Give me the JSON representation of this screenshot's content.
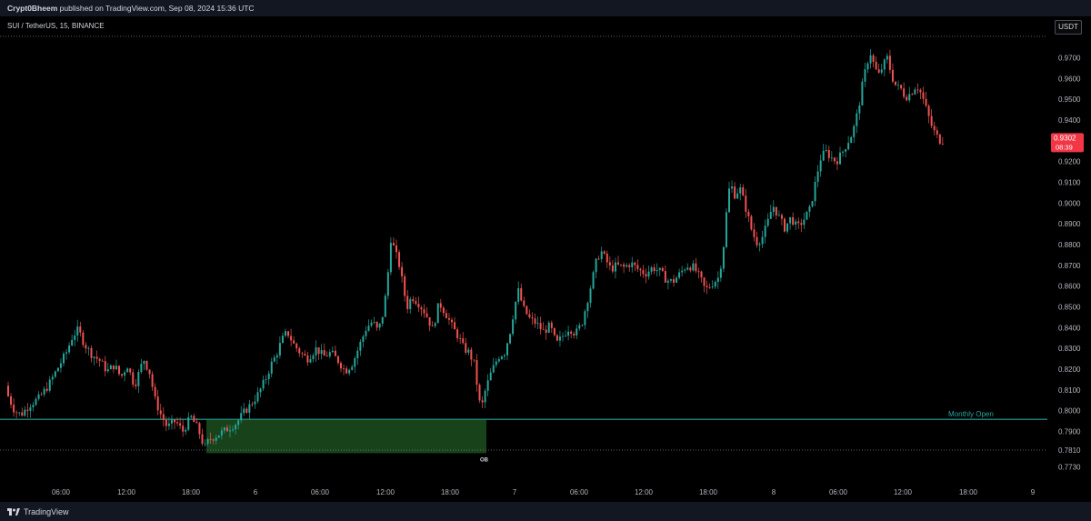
{
  "header": {
    "author": "Crypt0Bheem",
    "text": " published on TradingView.com, Sep 08, 2024 15:36 UTC"
  },
  "symbol": "SUI / TetherUS, 15, BINANCE",
  "currency_button": "USDT",
  "price_tag": {
    "price": "0.9302",
    "countdown": "08:39",
    "color": "#f23645"
  },
  "annotations": {
    "monthly_open_label": "Monthly Open",
    "ob_label": "OB"
  },
  "footer": {
    "brand": "TradingView"
  },
  "colors": {
    "up": "#26a69a",
    "down": "#ef5350",
    "monthly_open": "#26a69a",
    "ob_zone": "#1b4d1f",
    "background": "#000000"
  },
  "chart_data": {
    "type": "candlestick",
    "title": "SUI / TetherUS, 15, BINANCE",
    "xlabel": "",
    "ylabel": "",
    "ylim": [
      0.769,
      0.9803
    ],
    "y_tick_labels": [
      "0.9700",
      "0.9600",
      "0.9500",
      "0.9400",
      "0.9300",
      "0.9200",
      "0.9100",
      "0.9000",
      "0.8900",
      "0.8800",
      "0.8700",
      "0.8600",
      "0.8500",
      "0.8400",
      "0.8300",
      "0.8200",
      "0.8100",
      "0.8000",
      "0.7900",
      "0.7810",
      "0.7730"
    ],
    "x_tick_labels": [
      "06:00",
      "12:00",
      "18:00",
      "6",
      "06:00",
      "12:00",
      "18:00",
      "7",
      "06:00",
      "12:00",
      "18:00",
      "8",
      "06:00",
      "12:00",
      "18:00",
      "9"
    ],
    "reference_lines": [
      {
        "name": "Monthly Open",
        "value": 0.7958
      },
      {
        "value": 0.9803,
        "style": "dotted"
      },
      {
        "value": 0.781,
        "style": "dotted"
      }
    ],
    "zones": [
      {
        "name": "OB",
        "y_top": 0.7955,
        "y_bottom": 0.7795
      }
    ],
    "last_price": 0.9302,
    "path": [
      [
        0,
        0.812
      ],
      [
        5,
        0.818
      ],
      [
        10,
        0.808
      ],
      [
        18,
        0.8
      ],
      [
        25,
        0.798
      ],
      [
        35,
        0.803
      ],
      [
        45,
        0.806
      ],
      [
        55,
        0.812
      ],
      [
        65,
        0.82
      ],
      [
        75,
        0.828
      ],
      [
        82,
        0.836
      ],
      [
        88,
        0.839
      ],
      [
        95,
        0.832
      ],
      [
        103,
        0.827
      ],
      [
        112,
        0.824
      ],
      [
        120,
        0.819
      ],
      [
        128,
        0.822
      ],
      [
        135,
        0.816
      ],
      [
        142,
        0.822
      ],
      [
        150,
        0.812
      ],
      [
        160,
        0.825
      ],
      [
        167,
        0.818
      ],
      [
        172,
        0.806
      ],
      [
        178,
        0.799
      ],
      [
        186,
        0.792
      ],
      [
        195,
        0.795
      ],
      [
        203,
        0.79
      ],
      [
        212,
        0.797
      ],
      [
        220,
        0.791
      ],
      [
        227,
        0.782
      ],
      [
        232,
        0.786
      ],
      [
        240,
        0.788
      ],
      [
        248,
        0.79
      ],
      [
        255,
        0.792
      ],
      [
        262,
        0.794
      ],
      [
        270,
        0.799
      ],
      [
        278,
        0.803
      ],
      [
        286,
        0.808
      ],
      [
        294,
        0.815
      ],
      [
        300,
        0.822
      ],
      [
        306,
        0.827
      ],
      [
        312,
        0.834
      ],
      [
        318,
        0.838
      ],
      [
        325,
        0.832
      ],
      [
        332,
        0.828
      ],
      [
        340,
        0.825
      ],
      [
        350,
        0.83
      ],
      [
        358,
        0.826
      ],
      [
        366,
        0.828
      ],
      [
        374,
        0.824
      ],
      [
        382,
        0.819
      ],
      [
        390,
        0.823
      ],
      [
        398,
        0.832
      ],
      [
        405,
        0.84
      ],
      [
        412,
        0.843
      ],
      [
        418,
        0.838
      ],
      [
        424,
        0.848
      ],
      [
        428,
        0.862
      ],
      [
        432,
        0.883
      ],
      [
        437,
        0.876
      ],
      [
        442,
        0.869
      ],
      [
        446,
        0.858
      ],
      [
        450,
        0.85
      ],
      [
        455,
        0.855
      ],
      [
        462,
        0.852
      ],
      [
        470,
        0.847
      ],
      [
        478,
        0.839
      ],
      [
        485,
        0.852
      ],
      [
        492,
        0.847
      ],
      [
        500,
        0.84
      ],
      [
        507,
        0.835
      ],
      [
        512,
        0.83
      ],
      [
        518,
        0.828
      ],
      [
        524,
        0.822
      ],
      [
        528,
        0.808
      ],
      [
        531,
        0.8
      ],
      [
        536,
        0.81
      ],
      [
        542,
        0.818
      ],
      [
        550,
        0.826
      ],
      [
        557,
        0.828
      ],
      [
        563,
        0.838
      ],
      [
        568,
        0.85
      ],
      [
        572,
        0.858
      ],
      [
        578,
        0.849
      ],
      [
        585,
        0.844
      ],
      [
        592,
        0.842
      ],
      [
        600,
        0.838
      ],
      [
        607,
        0.841
      ],
      [
        614,
        0.832
      ],
      [
        621,
        0.836
      ],
      [
        628,
        0.84
      ],
      [
        635,
        0.837
      ],
      [
        642,
        0.842
      ],
      [
        648,
        0.853
      ],
      [
        653,
        0.862
      ],
      [
        658,
        0.872
      ],
      [
        663,
        0.877
      ],
      [
        668,
        0.873
      ],
      [
        674,
        0.868
      ],
      [
        680,
        0.87
      ],
      [
        688,
        0.869
      ],
      [
        696,
        0.871
      ],
      [
        704,
        0.868
      ],
      [
        712,
        0.866
      ],
      [
        720,
        0.869
      ],
      [
        728,
        0.867
      ],
      [
        735,
        0.863
      ],
      [
        742,
        0.862
      ],
      [
        750,
        0.866
      ],
      [
        757,
        0.87
      ],
      [
        765,
        0.869
      ],
      [
        772,
        0.864
      ],
      [
        778,
        0.858
      ],
      [
        785,
        0.861
      ],
      [
        792,
        0.864
      ],
      [
        797,
        0.875
      ],
      [
        801,
        0.895
      ],
      [
        805,
        0.91
      ],
      [
        810,
        0.904
      ],
      [
        816,
        0.907
      ],
      [
        822,
        0.898
      ],
      [
        828,
        0.888
      ],
      [
        834,
        0.881
      ],
      [
        840,
        0.883
      ],
      [
        846,
        0.89
      ],
      [
        852,
        0.899
      ],
      [
        858,
        0.894
      ],
      [
        865,
        0.888
      ],
      [
        872,
        0.893
      ],
      [
        879,
        0.888
      ],
      [
        886,
        0.892
      ],
      [
        893,
        0.897
      ],
      [
        899,
        0.91
      ],
      [
        904,
        0.921
      ],
      [
        910,
        0.925
      ],
      [
        916,
        0.922
      ],
      [
        922,
        0.92
      ],
      [
        928,
        0.924
      ],
      [
        934,
        0.929
      ],
      [
        940,
        0.934
      ],
      [
        946,
        0.945
      ],
      [
        951,
        0.958
      ],
      [
        955,
        0.966
      ],
      [
        959,
        0.973
      ],
      [
        963,
        0.967
      ],
      [
        968,
        0.961
      ],
      [
        973,
        0.966
      ],
      [
        978,
        0.97
      ],
      [
        983,
        0.961
      ],
      [
        988,
        0.956
      ],
      [
        993,
        0.955
      ],
      [
        998,
        0.951
      ],
      [
        1004,
        0.953
      ],
      [
        1010,
        0.957
      ],
      [
        1016,
        0.952
      ],
      [
        1021,
        0.945
      ],
      [
        1026,
        0.938
      ],
      [
        1031,
        0.933
      ],
      [
        1036,
        0.9302
      ]
    ]
  }
}
